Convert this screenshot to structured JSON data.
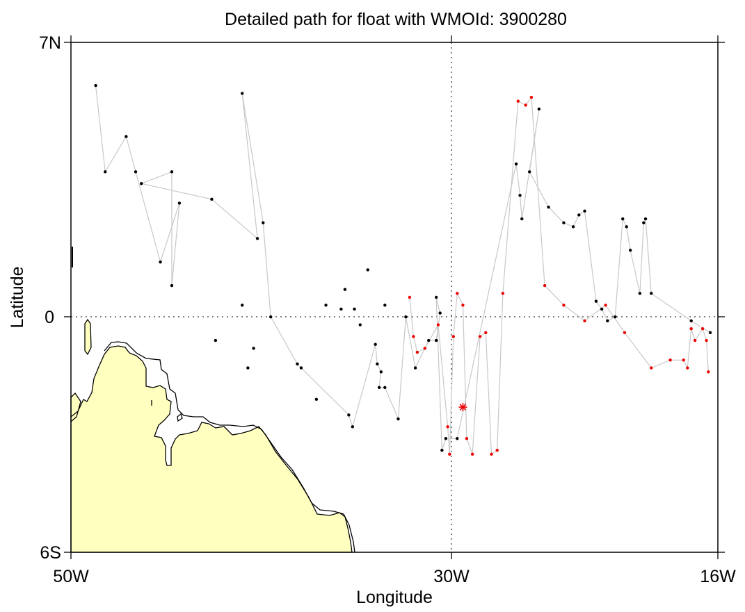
{
  "chart_data": {
    "type": "scatter",
    "title": "Detailed path for float with WMOId: 3900280",
    "xlabel": "Longitude",
    "ylabel": "Latitude",
    "xlim": [
      -50,
      -16
    ],
    "ylim": [
      -6,
      7
    ],
    "x_ticks": [
      {
        "value": -50,
        "label": "50W"
      },
      {
        "value": -30,
        "label": "30W"
      },
      {
        "value": -16,
        "label": "16W"
      }
    ],
    "y_ticks": [
      {
        "value": 7,
        "label": "7N"
      },
      {
        "value": 0,
        "label": "0"
      },
      {
        "value": -6,
        "label": "6S"
      }
    ],
    "reference_lines": {
      "x": [
        -30
      ],
      "y": [
        0
      ]
    },
    "grid": false,
    "colors": {
      "land": "#ffffc0",
      "coast": "#000000",
      "path": "#c8c8c8",
      "older_positions": "#000000",
      "recent_positions": "#ee0000",
      "latest_position": "#ee0000"
    },
    "series": [
      {
        "role": "older-positions",
        "points": [
          [
            -48.7,
            5.9
          ],
          [
            -48.2,
            3.7
          ],
          [
            -47.1,
            4.6
          ],
          [
            -46.6,
            3.7
          ],
          [
            -46.3,
            3.4
          ],
          [
            -45.3,
            1.4
          ],
          [
            -44.7,
            0.8
          ],
          [
            -44.7,
            3.7
          ],
          [
            -44.3,
            2.9
          ],
          [
            -42.6,
            3.0
          ],
          [
            -42.4,
            -0.6
          ],
          [
            -41.0,
            0.3
          ],
          [
            -40.7,
            -1.3
          ],
          [
            -41.0,
            5.7
          ],
          [
            -40.2,
            2.0
          ],
          [
            -40.4,
            -0.8
          ],
          [
            -39.9,
            2.4
          ],
          [
            -39.5,
            0.0
          ],
          [
            -38.1,
            -1.2
          ],
          [
            -37.9,
            -1.3
          ],
          [
            -37.1,
            -2.1
          ],
          [
            -36.6,
            0.3
          ],
          [
            -35.8,
            0.2
          ],
          [
            -35.6,
            0.7
          ],
          [
            -35.4,
            -2.5
          ],
          [
            -35.2,
            -2.8
          ],
          [
            -35.1,
            0.2
          ],
          [
            -34.8,
            -0.2
          ],
          [
            -34.4,
            1.2
          ],
          [
            -34.0,
            -0.7
          ],
          [
            -33.9,
            -1.2
          ],
          [
            -33.7,
            -1.4
          ],
          [
            -33.8,
            -1.8
          ],
          [
            -33.5,
            -1.8
          ],
          [
            -33.5,
            0.3
          ],
          [
            -32.8,
            -2.6
          ],
          [
            -32.4,
            0.0
          ],
          [
            -31.9,
            -1.3
          ],
          [
            -31.2,
            -0.6
          ],
          [
            -30.8,
            -0.6
          ],
          [
            -30.8,
            0.5
          ],
          [
            -30.6,
            0.1
          ],
          [
            -30.5,
            -3.4
          ],
          [
            -30.3,
            -3.1
          ],
          [
            -29.7,
            -3.1
          ],
          [
            -26.6,
            3.9
          ],
          [
            -26.4,
            3.1
          ],
          [
            -26.3,
            2.5
          ],
          [
            -25.9,
            3.7
          ],
          [
            -25.4,
            5.3
          ],
          [
            -24.9,
            2.8
          ],
          [
            -24.1,
            2.4
          ],
          [
            -23.6,
            2.3
          ],
          [
            -23.3,
            2.6
          ],
          [
            -23.0,
            2.7
          ],
          [
            -22.4,
            0.4
          ],
          [
            -22.1,
            0.2
          ],
          [
            -21.8,
            -0.1
          ],
          [
            -21.4,
            0.0
          ],
          [
            -21.0,
            2.5
          ],
          [
            -20.8,
            2.3
          ],
          [
            -20.6,
            1.7
          ],
          [
            -20.1,
            0.6
          ],
          [
            -19.9,
            2.4
          ],
          [
            -19.8,
            2.5
          ],
          [
            -19.5,
            0.6
          ],
          [
            -17.4,
            -0.1
          ],
          [
            -16.4,
            -0.4
          ]
        ]
      },
      {
        "role": "recent-positions",
        "points": [
          [
            -32.2,
            0.5
          ],
          [
            -32.0,
            -0.5
          ],
          [
            -31.8,
            -0.9
          ],
          [
            -31.4,
            -0.8
          ],
          [
            -30.7,
            -0.2
          ],
          [
            -30.2,
            -2.8
          ],
          [
            -30.1,
            -3.5
          ],
          [
            -29.9,
            -0.5
          ],
          [
            -29.7,
            0.6
          ],
          [
            -29.4,
            0.3
          ],
          [
            -29.2,
            -3.1
          ],
          [
            -28.9,
            -3.5
          ],
          [
            -28.5,
            -0.5
          ],
          [
            -28.2,
            -0.4
          ],
          [
            -27.9,
            -3.5
          ],
          [
            -27.6,
            -3.4
          ],
          [
            -27.3,
            0.6
          ],
          [
            -26.5,
            5.5
          ],
          [
            -26.1,
            5.4
          ],
          [
            -25.8,
            5.6
          ],
          [
            -25.1,
            0.8
          ],
          [
            -24.1,
            0.3
          ],
          [
            -23.0,
            -0.1
          ],
          [
            -21.9,
            0.3
          ],
          [
            -20.9,
            -0.4
          ],
          [
            -19.5,
            -1.3
          ],
          [
            -18.5,
            -1.1
          ],
          [
            -17.8,
            -1.1
          ],
          [
            -17.6,
            -1.3
          ],
          [
            -17.4,
            -0.3
          ],
          [
            -17.2,
            -0.6
          ],
          [
            -16.8,
            -0.3
          ],
          [
            -16.6,
            -0.6
          ],
          [
            -16.5,
            -1.4
          ]
        ]
      },
      {
        "role": "latest-position",
        "points": [
          [
            -29.4,
            -2.3
          ]
        ]
      }
    ],
    "track_order": [
      [
        -48.7,
        5.9
      ],
      [
        -48.2,
        3.7
      ],
      [
        -47.1,
        4.6
      ],
      [
        -46.6,
        3.7
      ],
      [
        -45.3,
        1.4
      ],
      [
        -44.3,
        2.9
      ],
      [
        -44.7,
        0.8
      ],
      [
        -44.7,
        3.7
      ],
      [
        -46.3,
        3.4
      ],
      [
        -42.6,
        3.0
      ],
      [
        -40.2,
        2.0
      ],
      [
        -41.0,
        5.7
      ],
      [
        -39.9,
        2.4
      ],
      [
        -39.5,
        0.0
      ],
      [
        -38.1,
        -1.2
      ],
      [
        -37.9,
        -1.3
      ],
      [
        -35.4,
        -2.5
      ],
      [
        -35.2,
        -2.8
      ],
      [
        -34.0,
        -0.7
      ],
      [
        -33.9,
        -1.2
      ],
      [
        -33.7,
        -1.4
      ],
      [
        -33.8,
        -1.8
      ],
      [
        -33.5,
        -1.8
      ],
      [
        -32.8,
        -2.6
      ],
      [
        -32.4,
        0.0
      ],
      [
        -31.9,
        -1.3
      ],
      [
        -31.2,
        -0.6
      ],
      [
        -30.8,
        -0.6
      ],
      [
        -30.6,
        0.1
      ],
      [
        -30.8,
        0.5
      ],
      [
        -30.5,
        -3.4
      ],
      [
        -30.3,
        -3.1
      ],
      [
        -29.7,
        -3.1
      ],
      [
        -26.6,
        3.9
      ],
      [
        -26.4,
        3.1
      ],
      [
        -26.3,
        2.5
      ],
      [
        -25.4,
        5.3
      ],
      [
        -25.9,
        3.7
      ],
      [
        -24.9,
        2.8
      ],
      [
        -24.1,
        2.4
      ],
      [
        -23.6,
        2.3
      ],
      [
        -23.3,
        2.6
      ],
      [
        -23.0,
        2.7
      ],
      [
        -22.4,
        0.4
      ],
      [
        -22.1,
        0.2
      ],
      [
        -21.8,
        -0.1
      ],
      [
        -21.4,
        0.0
      ],
      [
        -21.0,
        2.5
      ],
      [
        -20.8,
        2.3
      ],
      [
        -20.6,
        1.7
      ],
      [
        -20.1,
        0.6
      ],
      [
        -19.9,
        2.4
      ],
      [
        -19.8,
        2.5
      ],
      [
        -19.5,
        0.6
      ],
      [
        -17.4,
        -0.1
      ],
      [
        -16.4,
        -0.4
      ]
    ]
  }
}
